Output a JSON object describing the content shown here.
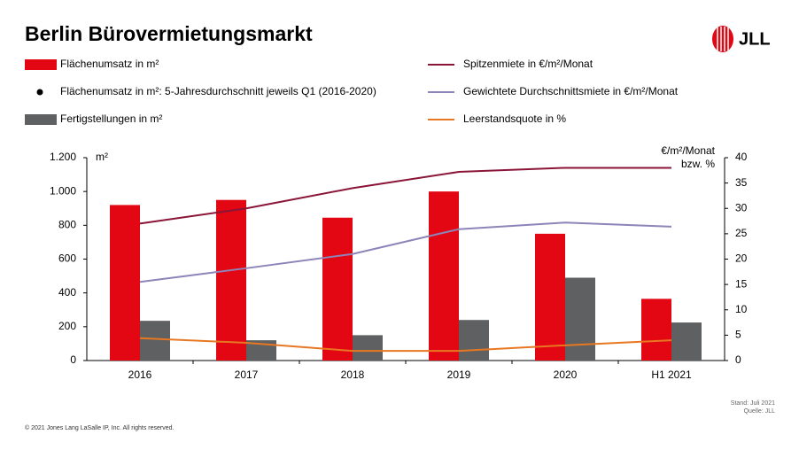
{
  "chart_data": {
    "type": "bar",
    "title": "Berlin Bürovermietungsmarkt",
    "logo": "JLL",
    "ylabel": "m²",
    "y2label": [
      "€/m²/Monat",
      "bzw. %"
    ],
    "categories": [
      "2016",
      "2017",
      "2018",
      "2019",
      "2020",
      "H1 2021"
    ],
    "series": [
      {
        "name": "Flächenumsatz in m²",
        "type": "bar",
        "color": "#e30613",
        "values": [
          920,
          950,
          845,
          1000,
          750,
          365
        ]
      },
      {
        "name": "Flächenumsatz in m²: 5-Jahresdurchschnitt jeweils Q1 (2016-2020)",
        "type": "scatter",
        "color": "#000000",
        "values": [
          null,
          null,
          null,
          null,
          null,
          null
        ]
      },
      {
        "name": "Fertigstellungen in m²",
        "type": "bar",
        "color": "#5f6062",
        "values": [
          235,
          120,
          150,
          240,
          490,
          225
        ]
      },
      {
        "name": "Spitzenmiete in €/m²/Monat",
        "type": "line",
        "axis": "y2",
        "color": "#8a1538",
        "values": [
          27,
          30,
          34,
          37.2,
          38,
          38
        ]
      },
      {
        "name": "Gewichtete Durchschnittsmiete in €/m²/Monat",
        "type": "line",
        "axis": "y2",
        "color": "#8e84b8",
        "values": [
          15.5,
          18.2,
          21,
          25.9,
          27.2,
          26.4
        ]
      },
      {
        "name": "Leerstandsquote in %",
        "type": "line",
        "axis": "y2",
        "color": "#e87722",
        "values": [
          4.4,
          3.5,
          1.9,
          1.9,
          3,
          4
        ]
      }
    ],
    "ylim": [
      0,
      1200
    ],
    "yticks": [
      0,
      200,
      400,
      600,
      800,
      {
        "value": 1000,
        "label": "1.000"
      },
      {
        "value": 1200,
        "label": "1.200"
      }
    ],
    "y2lim": [
      0,
      40
    ],
    "y2ticks": [
      0,
      5,
      10,
      15,
      20,
      25,
      30,
      35,
      40
    ],
    "notes": [
      "Stand: Juli 2021",
      "Quelle: JLL"
    ],
    "copyright": "© 2021 Jones Lang LaSalle IP, Inc. All rights reserved."
  }
}
